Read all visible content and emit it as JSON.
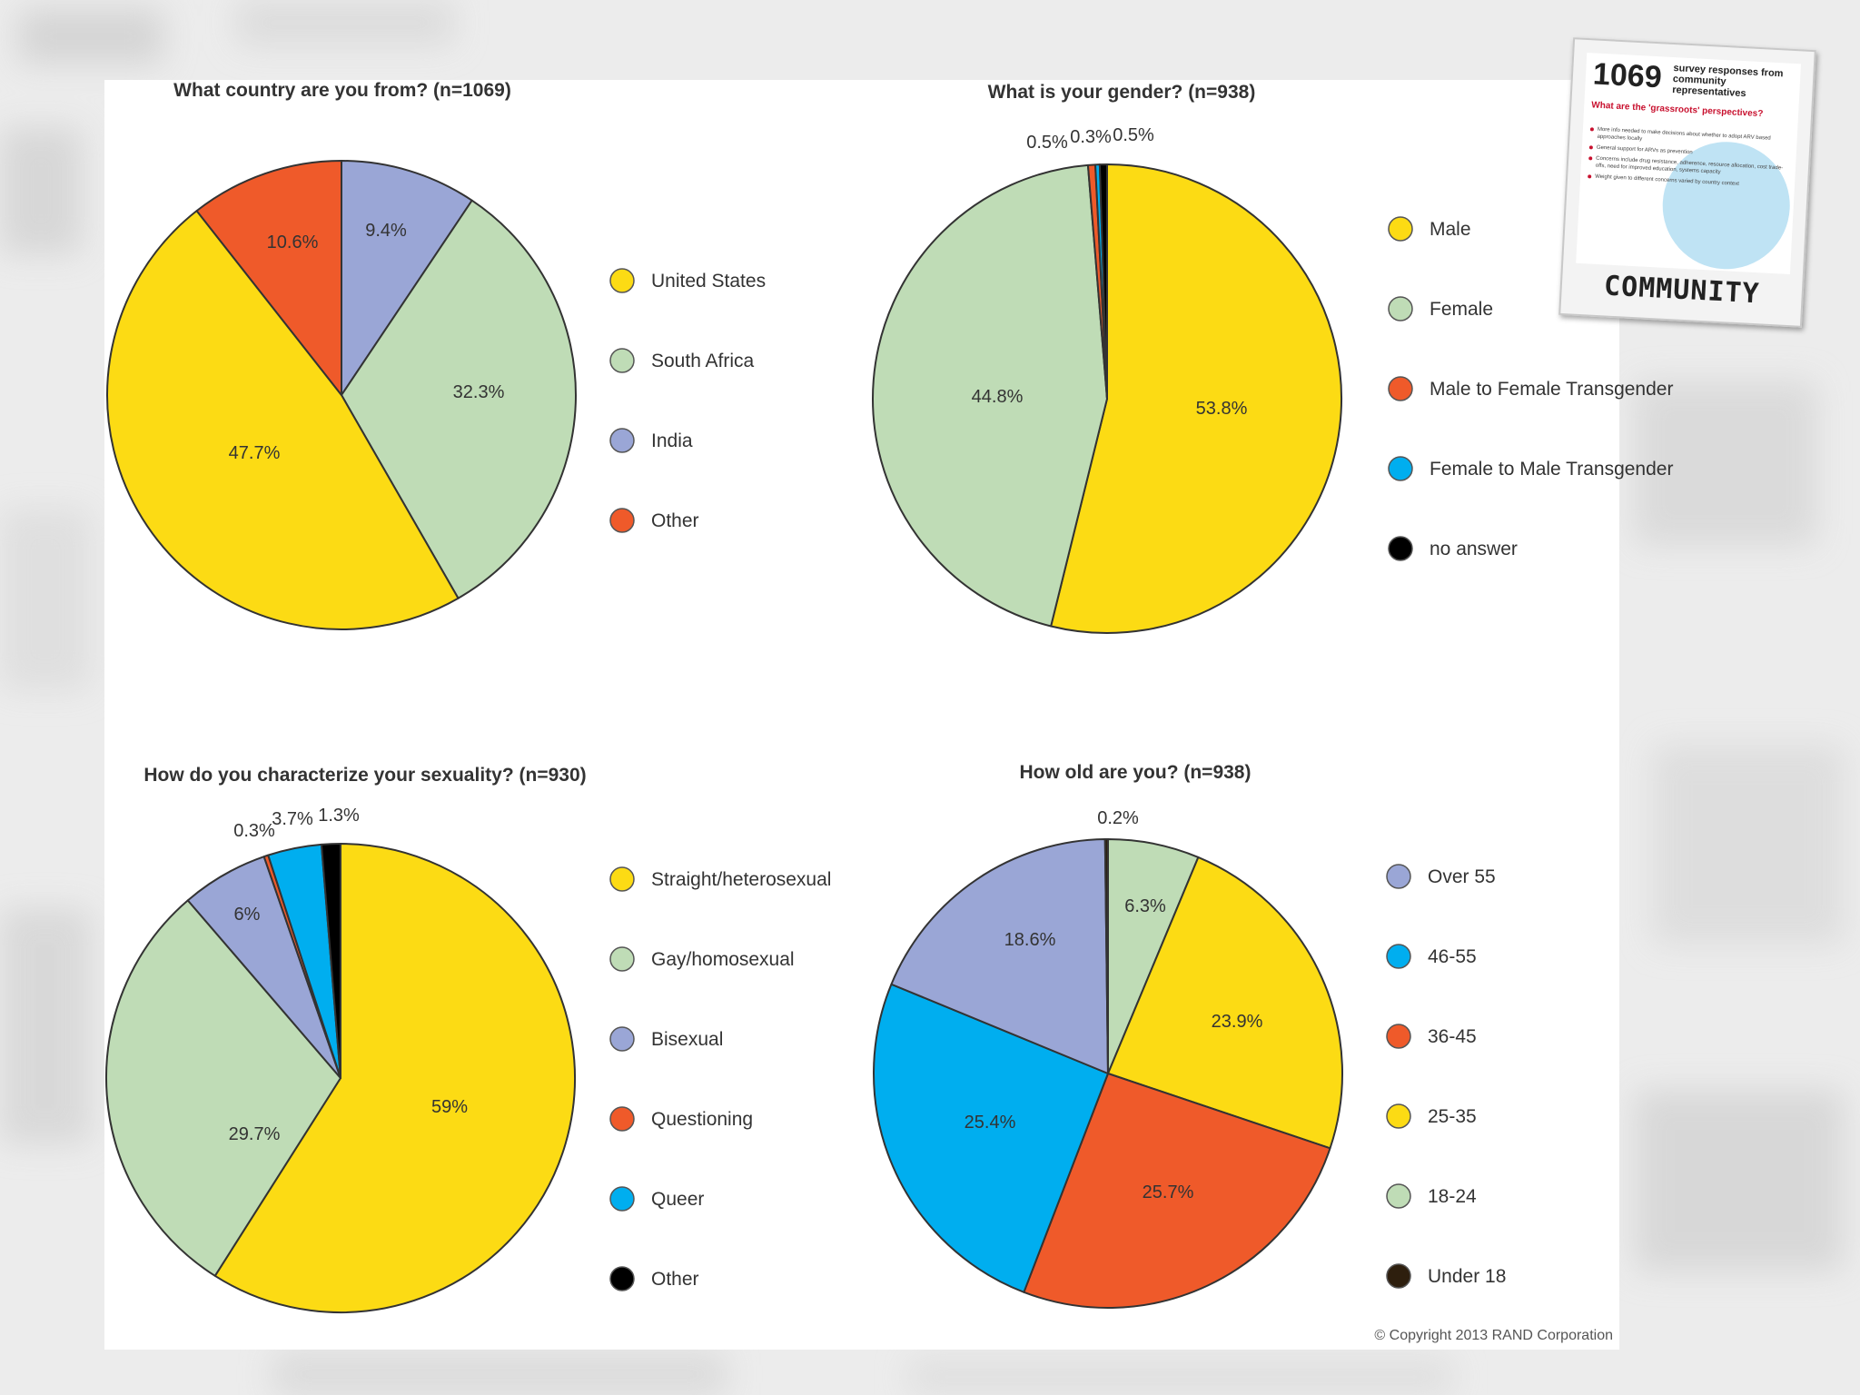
{
  "card": {
    "count": "1069",
    "heading": "survey responses from community representatives",
    "question": "What are the 'grassroots' perspectives?",
    "bullets": [
      "More info needed to make decisions about whether to adopt ARV based approaches locally",
      "General support for ARVs as prevention",
      "Concerns include drug resistance, adherence, resource allocation, cost trade-offs, need for improved education, systems capacity",
      "Weight given to different concerns varied by country context"
    ],
    "title": "COMMUNITY"
  },
  "copyright": "© Copyright 2013 RAND Corporation",
  "chart_data": [
    {
      "type": "pie",
      "title": "What country are you from? (n=1069)",
      "slices": [
        {
          "name": "India",
          "value": 9.4,
          "label": "9.4%",
          "color": "#9aa6d6"
        },
        {
          "name": "South Africa",
          "value": 32.3,
          "label": "32.3%",
          "color": "#bfdcb6"
        },
        {
          "name": "United States",
          "value": 47.7,
          "label": "47.7%",
          "color": "#fcdb14"
        },
        {
          "name": "Other",
          "value": 10.6,
          "label": "10.6%",
          "color": "#ef5a2a"
        }
      ],
      "legend": [
        "United States",
        "South Africa",
        "India",
        "Other"
      ]
    },
    {
      "type": "pie",
      "title": "What is your gender? (n=938)",
      "slices": [
        {
          "name": "Male",
          "value": 53.8,
          "label": "53.8%",
          "color": "#fcdb14"
        },
        {
          "name": "Female",
          "value": 44.8,
          "label": "44.8%",
          "color": "#bfdcb6"
        },
        {
          "name": "Male to Female Transgender",
          "value": 0.5,
          "label": "0.5%",
          "color": "#ef5a2a"
        },
        {
          "name": "Female to Male Transgender",
          "value": 0.3,
          "label": "0.3%",
          "color": "#00aeef"
        },
        {
          "name": "no answer",
          "value": 0.5,
          "label": "0.5%",
          "color": "#000000"
        }
      ],
      "legend": [
        "Male",
        "Female",
        "Male to Female Transgender",
        "Female to Male Transgender",
        "no answer"
      ]
    },
    {
      "type": "pie",
      "title": "How do you characterize your sexuality? (n=930)",
      "slices": [
        {
          "name": "Straight/heterosexual",
          "value": 59,
          "label": "59%",
          "color": "#fcdb14"
        },
        {
          "name": "Gay/homosexual",
          "value": 29.7,
          "label": "29.7%",
          "color": "#bfdcb6"
        },
        {
          "name": "Bisexual",
          "value": 6,
          "label": "6%",
          "color": "#9aa6d6"
        },
        {
          "name": "Questioning",
          "value": 0.3,
          "label": "0.3%",
          "color": "#ef5a2a"
        },
        {
          "name": "Queer",
          "value": 3.7,
          "label": "3.7%",
          "color": "#00aeef"
        },
        {
          "name": "Other",
          "value": 1.3,
          "label": "1.3%",
          "color": "#000000"
        }
      ],
      "legend": [
        "Straight/heterosexual",
        "Gay/homosexual",
        "Bisexual",
        "Questioning",
        "Queer",
        "Other"
      ]
    },
    {
      "type": "pie",
      "title": "How old are you? (n=938)",
      "slices": [
        {
          "name": "18-24",
          "value": 6.3,
          "label": "6.3%",
          "color": "#bfdcb6"
        },
        {
          "name": "25-35",
          "value": 23.9,
          "label": "23.9%",
          "color": "#fcdb14"
        },
        {
          "name": "36-45",
          "value": 25.7,
          "label": "25.7%",
          "color": "#ef5a2a"
        },
        {
          "name": "46-55",
          "value": 25.4,
          "label": "25.4%",
          "color": "#00aeef"
        },
        {
          "name": "Over 55",
          "value": 18.6,
          "label": "18.6%",
          "color": "#9aa6d6"
        },
        {
          "name": "Under 18",
          "value": 0.2,
          "label": "0.2%",
          "color": "#2e1f0e"
        }
      ],
      "legend": [
        "Over 55",
        "46-55",
        "36-45",
        "25-35",
        "18-24",
        "Under 18"
      ]
    }
  ]
}
